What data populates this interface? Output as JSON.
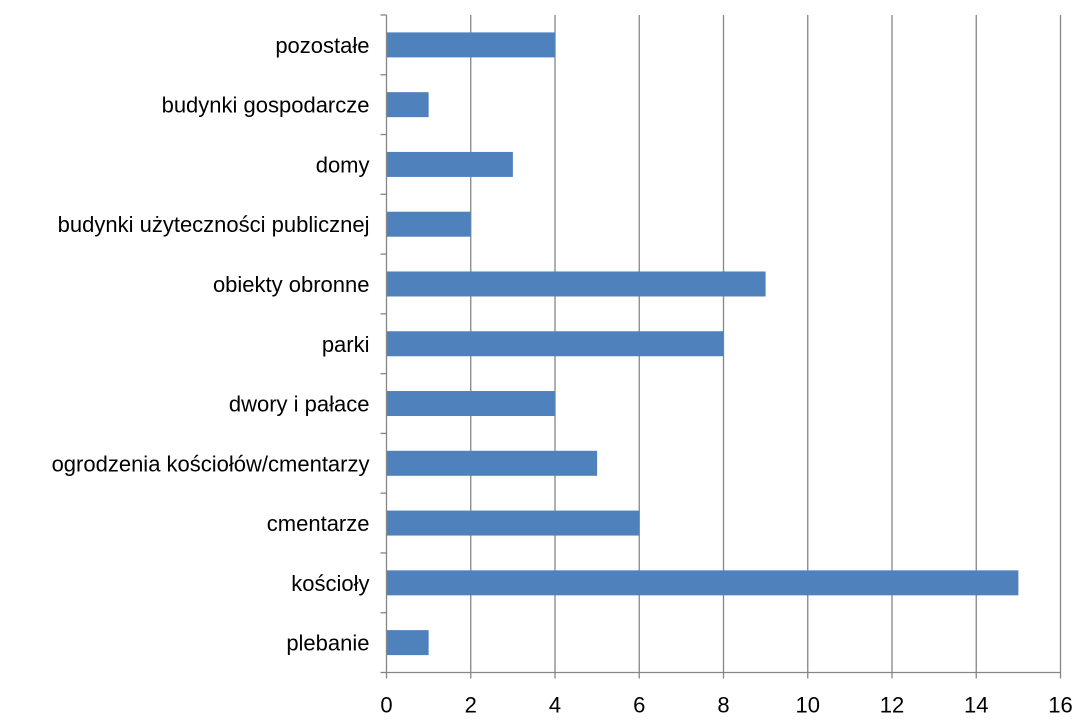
{
  "chart_data": {
    "type": "bar",
    "orientation": "horizontal",
    "categories": [
      "pozostałe",
      "budynki gospodarcze",
      "domy",
      "budynki użyteczności publicznej",
      "obiekty obronne",
      "parki",
      "dwory i pałace",
      "ogrodzenia kościołów/cmentarzy",
      "cmentarze",
      "kościoły",
      "plebanie"
    ],
    "values": [
      4,
      1,
      3,
      2,
      9,
      8,
      4,
      5,
      6,
      15,
      1
    ],
    "xlim": [
      0,
      16
    ],
    "xticks": [
      0,
      2,
      4,
      6,
      8,
      10,
      12,
      14,
      16
    ],
    "xtick_labels": [
      "0",
      "2",
      "4",
      "6",
      "8",
      "10",
      "12",
      "14",
      "16"
    ],
    "title": "",
    "xlabel": "",
    "ylabel": "",
    "grid": "vertical",
    "legend": "none",
    "colors": {
      "bar": "#4F81BD",
      "grid": "#868686",
      "axis": "#868686"
    }
  }
}
